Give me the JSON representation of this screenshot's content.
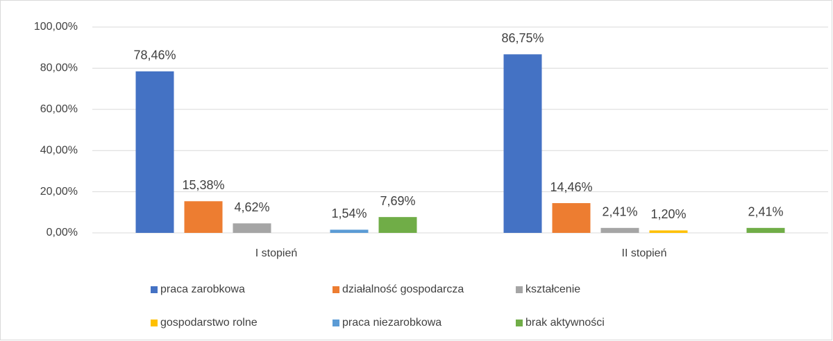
{
  "chart_data": {
    "type": "bar",
    "categories": [
      "I stopień",
      "II stopień"
    ],
    "series": [
      {
        "name": "praca zarobkowa",
        "color": "#4472c4",
        "values": [
          78.46,
          86.75
        ],
        "value_labels": [
          "78,46%",
          "86,75%"
        ]
      },
      {
        "name": "działalność gospodarcza",
        "color": "#ed7d31",
        "values": [
          15.38,
          14.46
        ],
        "value_labels": [
          "15,38%",
          "14,46%"
        ]
      },
      {
        "name": "kształcenie",
        "color": "#a5a5a5",
        "values": [
          4.62,
          2.41
        ],
        "value_labels": [
          "4,62%",
          "2,41%"
        ]
      },
      {
        "name": "gospodarstwo rolne",
        "color": "#ffc000",
        "values": [
          null,
          1.2
        ],
        "value_labels": [
          null,
          "1,20%"
        ]
      },
      {
        "name": "praca niezarobkowa",
        "color": "#5b9bd5",
        "values": [
          1.54,
          null
        ],
        "value_labels": [
          "1,54%",
          null
        ]
      },
      {
        "name": "brak aktywności",
        "color": "#70ad47",
        "values": [
          7.69,
          2.41
        ],
        "value_labels": [
          "7,69%",
          "2,41%"
        ]
      }
    ],
    "ylim": [
      0,
      100
    ],
    "yticks": [
      {
        "value": 0,
        "label": "0,00%"
      },
      {
        "value": 20,
        "label": "20,00%"
      },
      {
        "value": 40,
        "label": "40,00%"
      },
      {
        "value": 60,
        "label": "60,00%"
      },
      {
        "value": 80,
        "label": "80,00%"
      },
      {
        "value": 100,
        "label": "100,00%"
      }
    ],
    "grid": true,
    "legend": "bottom"
  }
}
